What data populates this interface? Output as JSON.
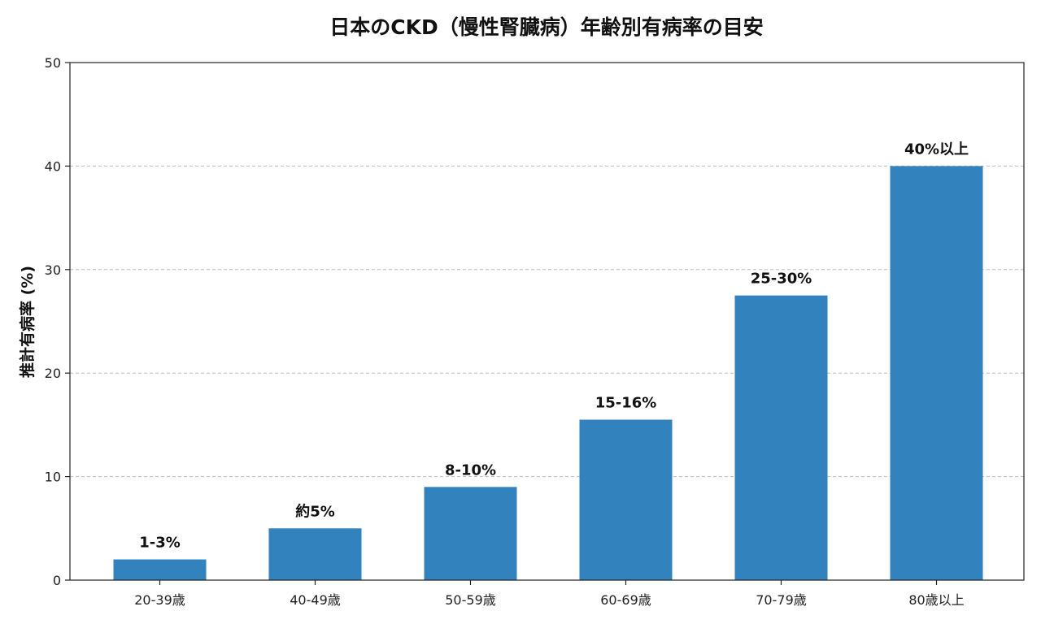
{
  "chart_data": {
    "type": "bar",
    "title": "日本のCKD（慢性腎臓病）年齢別有病率の目安",
    "xlabel": "",
    "ylabel": "推計有病率 (%)",
    "ylim": [
      0,
      50
    ],
    "yticks": [
      0,
      10,
      20,
      30,
      40,
      50
    ],
    "grid": "horizontal dashed",
    "categories": [
      "20-39歳",
      "40-49歳",
      "50-59歳",
      "60-69歳",
      "70-79歳",
      "80歳以上"
    ],
    "values": [
      2,
      5,
      9,
      15.5,
      27.5,
      40
    ],
    "labels": [
      "1-3%",
      "約5%",
      "8-10%",
      "15-16%",
      "25-30%",
      "40%以上"
    ],
    "bar_color": "#3182bd"
  }
}
